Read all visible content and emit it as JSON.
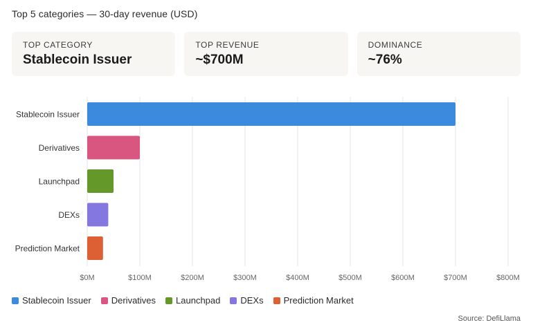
{
  "header": {
    "title": "Top 5 categories — 30-day revenue (USD)"
  },
  "cards": [
    {
      "label": "TOP CATEGORY",
      "value": "Stablecoin Issuer"
    },
    {
      "label": "TOP REVENUE",
      "value": "~$700M"
    },
    {
      "label": "DOMINANCE",
      "value": "~76%"
    }
  ],
  "chart_data": {
    "type": "bar",
    "orientation": "horizontal",
    "title": "Top 5 categories — 30-day revenue (USD)",
    "categories": [
      "Stablecoin Issuer",
      "Derivatives",
      "Launchpad",
      "DEXs",
      "Prediction Market"
    ],
    "values": [
      700,
      100,
      50,
      40,
      30
    ],
    "colors": [
      "#3b8ade",
      "#d85680",
      "#64992a",
      "#8577e0",
      "#dd6035"
    ],
    "xlim": [
      0,
      800
    ],
    "x_ticks": [
      0,
      100,
      200,
      300,
      400,
      500,
      600,
      700,
      800
    ],
    "x_tick_labels": [
      "$0M",
      "$100M",
      "$200M",
      "$300M",
      "$400M",
      "$500M",
      "$600M",
      "$700M",
      "$800M"
    ],
    "grid": "vertical",
    "legend": "bottom-left"
  },
  "legend": {
    "items": [
      {
        "label": "Stablecoin Issuer",
        "color": "#3b8ade"
      },
      {
        "label": "Derivatives",
        "color": "#d85680"
      },
      {
        "label": "Launchpad",
        "color": "#64992a"
      },
      {
        "label": "DEXs",
        "color": "#8577e0"
      },
      {
        "label": "Prediction Market",
        "color": "#dd6035"
      }
    ]
  },
  "footer": {
    "source": "Source: DefiLlama"
  }
}
